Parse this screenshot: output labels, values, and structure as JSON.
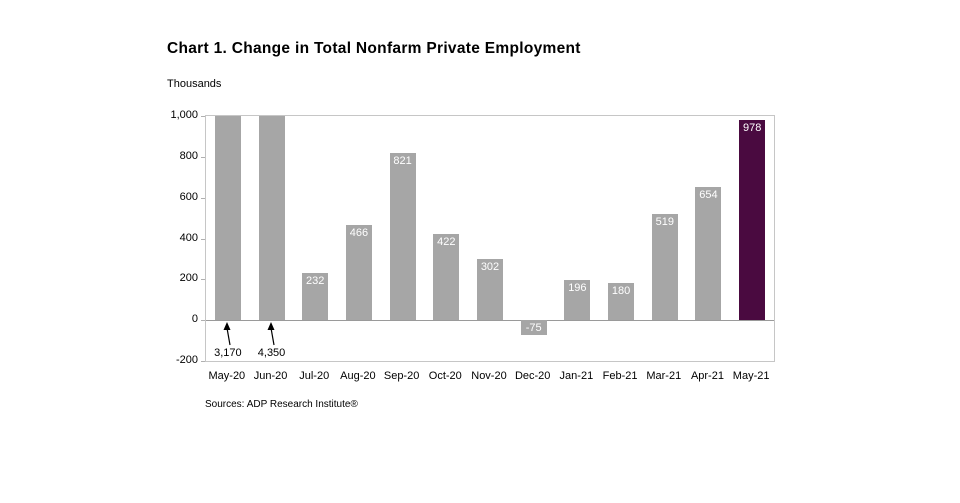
{
  "title": "Chart 1. Change in Total Nonfarm Private Employment",
  "y_axis_unit": "Thousands",
  "source": "Sources: ADP Research Institute®",
  "chart_data": {
    "type": "bar",
    "title": "Chart 1. Change in Total Nonfarm Private Employment",
    "ylabel": "Thousands",
    "xlabel": "",
    "ylim": [
      -200,
      1000
    ],
    "grid": false,
    "legend": "none",
    "yticks": [
      {
        "value": 1000,
        "label": "1,000"
      },
      {
        "value": 800,
        "label": "800"
      },
      {
        "value": 600,
        "label": "600"
      },
      {
        "value": 400,
        "label": "400"
      },
      {
        "value": 200,
        "label": "200"
      },
      {
        "value": 0,
        "label": "0"
      },
      {
        "value": -200,
        "label": "-200"
      }
    ],
    "categories": [
      "May-20",
      "Jun-20",
      "Jul-20",
      "Aug-20",
      "Sep-20",
      "Oct-20",
      "Nov-20",
      "Dec-20",
      "Jan-21",
      "Feb-21",
      "Mar-21",
      "Apr-21",
      "May-21"
    ],
    "values": [
      3170,
      4350,
      232,
      466,
      821,
      422,
      302,
      -75,
      196,
      180,
      519,
      654,
      978
    ],
    "value_labels": [
      "3,170",
      "4,350",
      "232",
      "466",
      "821",
      "422",
      "302",
      "-75",
      "196",
      "180",
      "519",
      "654",
      "978"
    ],
    "clipped_indices": [
      0,
      1
    ],
    "highlight_index": 12,
    "bar_color": "#a6a6a6",
    "highlight_color": "#4a0a40",
    "value_label_color": "#ffffff",
    "zero_line_color": "#9a9a9a",
    "plot_border_color": "#c6c6c6"
  }
}
